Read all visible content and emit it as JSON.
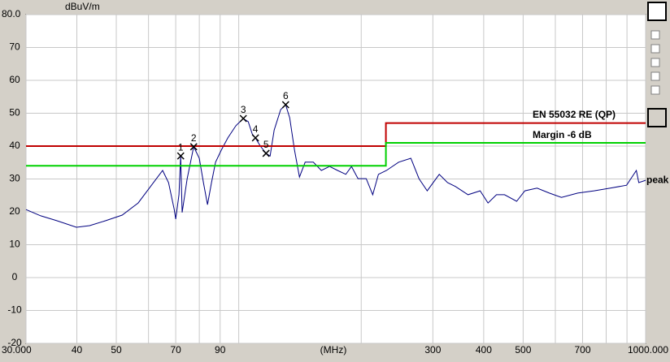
{
  "chart_data": {
    "type": "line",
    "y_unit": "dBuV/m",
    "x_label": "(MHz)",
    "log_x": true,
    "grid": true,
    "xlim": [
      30,
      1000
    ],
    "ylim": [
      -20,
      80
    ],
    "xticks": [
      {
        "value": 30,
        "label": "30.000"
      },
      40,
      50,
      70,
      90,
      300,
      400,
      500,
      700,
      {
        "value": 1000,
        "label": "1000.000"
      }
    ],
    "minor_xticks": [
      60,
      80,
      100,
      200,
      600,
      800,
      900
    ],
    "yticks": [
      {
        "value": 80,
        "label": "80.0"
      },
      70,
      60,
      50,
      40,
      30,
      20,
      10,
      0,
      -10,
      -20
    ],
    "series": [
      {
        "name": "peak",
        "color": "#000080",
        "x": [
          30,
          32.6,
          35.7,
          39.9,
          43,
          47.1,
          51.7,
          56.6,
          60.7,
          65,
          67.2,
          69.4,
          70,
          71.3,
          72,
          72.6,
          74.7,
          77.5,
          80,
          81.9,
          83.8,
          85.7,
          87.7,
          90.6,
          94,
          98.4,
          102.6,
          105.5,
          107.9,
          109.9,
          113,
          116.7,
          119.4,
          122.2,
          126.8,
          130.4,
          133.4,
          137.1,
          141,
          145.6,
          152.5,
          159.6,
          167.2,
          175,
          183.3,
          189.3,
          196.4,
          205.7,
          213.4,
          220.4,
          230.7,
          247.2,
          264.9,
          277.4,
          290.5,
          311,
          326,
          341,
          366,
          392,
          410,
          430,
          450,
          482,
          505,
          541,
          580,
          621,
          681,
          747,
          819,
          898,
          949,
          962,
          1000
        ],
        "values": [
          20.7,
          18.8,
          17.3,
          15.3,
          15.8,
          17.3,
          19,
          22.7,
          27.7,
          32.6,
          28.9,
          20.7,
          17.8,
          25.2,
          37,
          19.8,
          30.1,
          39.8,
          36.3,
          28.9,
          22.2,
          28.9,
          35.1,
          38.8,
          42.5,
          46.2,
          48.4,
          47.4,
          43.7,
          42.5,
          40,
          37.8,
          37,
          44.9,
          51.1,
          52.6,
          48.6,
          38.8,
          30.6,
          35.1,
          35.1,
          32.6,
          33.8,
          32.6,
          31.4,
          33.8,
          30.1,
          30.1,
          25.2,
          31.4,
          32.6,
          35.1,
          36.3,
          30.1,
          26.4,
          31.4,
          28.9,
          27.7,
          25.2,
          26.4,
          22.7,
          25.2,
          25.2,
          23.2,
          26.4,
          27.2,
          25.7,
          24.4,
          25.7,
          26.4,
          27.2,
          28.1,
          32.6,
          28.9,
          29.6
        ]
      },
      {
        "name": "EN 55032 RE (QP)",
        "color": "#c00000",
        "x": [
          30,
          230,
          230,
          1000
        ],
        "values": [
          40,
          40,
          47,
          47
        ]
      },
      {
        "name": "Margin -6 dB",
        "color": "#00d000",
        "x": [
          30,
          230,
          230,
          1000
        ],
        "values": [
          34,
          34,
          41,
          41
        ]
      }
    ],
    "markers": [
      {
        "label": "1",
        "x": 72,
        "y": 37
      },
      {
        "label": "2",
        "x": 77.5,
        "y": 39.8
      },
      {
        "label": "3",
        "x": 102.6,
        "y": 48.4
      },
      {
        "label": "4",
        "x": 109.9,
        "y": 42.5
      },
      {
        "label": "5",
        "x": 116.7,
        "y": 37.8
      },
      {
        "label": "6",
        "x": 130.4,
        "y": 52.6
      }
    ]
  }
}
